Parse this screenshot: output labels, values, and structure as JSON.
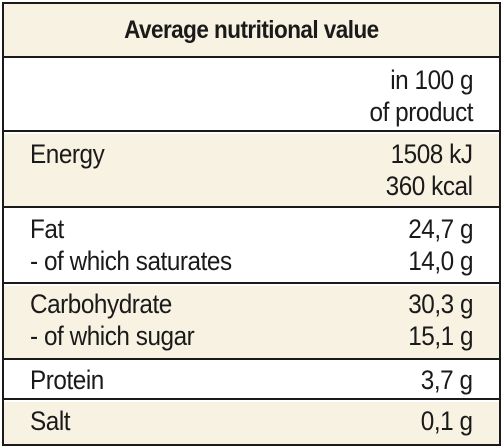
{
  "title": "Average nutritional value",
  "column_header": {
    "line1": "in 100 g",
    "line2": "of product"
  },
  "rows": [
    {
      "labels": [
        "Energy"
      ],
      "values": [
        "1508 kJ",
        "360 kcal"
      ]
    },
    {
      "labels": [
        "Fat",
        "- of which saturates"
      ],
      "values": [
        "24,7 g",
        "14,0 g"
      ]
    },
    {
      "labels": [
        "Carbohydrate",
        "- of which sugar"
      ],
      "values": [
        "30,3 g",
        "15,1 g"
      ]
    },
    {
      "labels": [
        "Protein"
      ],
      "values": [
        "3,7 g"
      ]
    },
    {
      "labels": [
        "Salt"
      ],
      "values": [
        "0,1 g"
      ]
    }
  ],
  "colors": {
    "tint": "#f7f2e1",
    "border": "#1a1a1a",
    "text": "#1a1a1a"
  }
}
